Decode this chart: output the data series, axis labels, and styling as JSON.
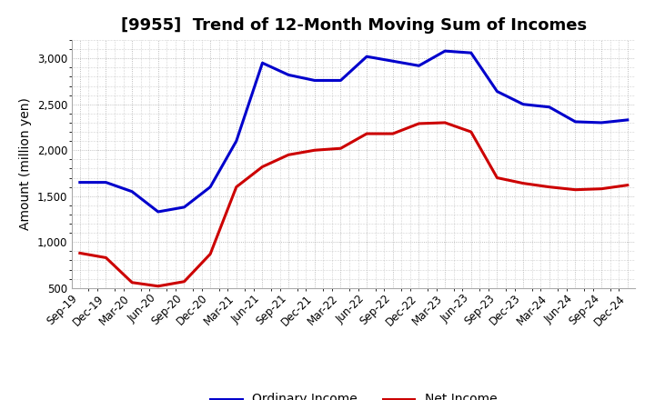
{
  "title": "[9955]  Trend of 12-Month Moving Sum of Incomes",
  "ylabel": "Amount (million yen)",
  "x_labels": [
    "Sep-19",
    "Dec-19",
    "Mar-20",
    "Jun-20",
    "Sep-20",
    "Dec-20",
    "Mar-21",
    "Jun-21",
    "Sep-21",
    "Dec-21",
    "Mar-22",
    "Jun-22",
    "Sep-22",
    "Dec-22",
    "Mar-23",
    "Jun-23",
    "Sep-23",
    "Dec-23",
    "Mar-24",
    "Jun-24",
    "Sep-24",
    "Dec-24"
  ],
  "ordinary_income": [
    1650,
    1650,
    1550,
    1330,
    1380,
    1600,
    2100,
    2950,
    2820,
    2760,
    2760,
    3020,
    2970,
    2920,
    3080,
    3060,
    2640,
    2500,
    2470,
    2310,
    2300,
    2330
  ],
  "net_income": [
    880,
    830,
    560,
    520,
    570,
    870,
    1600,
    1820,
    1950,
    2000,
    2020,
    2180,
    2180,
    2290,
    2300,
    2200,
    1700,
    1640,
    1600,
    1570,
    1580,
    1620
  ],
  "ordinary_income_color": "#0000cc",
  "net_income_color": "#cc0000",
  "ylim_min": 500,
  "ylim_max": 3200,
  "yticks": [
    500,
    1000,
    1500,
    2000,
    2500,
    3000
  ],
  "grid_color": "#aaaaaa",
  "background_color": "#ffffff",
  "title_fontsize": 13,
  "axis_fontsize": 10,
  "tick_fontsize": 8.5,
  "legend_fontsize": 10,
  "linewidth": 2.2
}
